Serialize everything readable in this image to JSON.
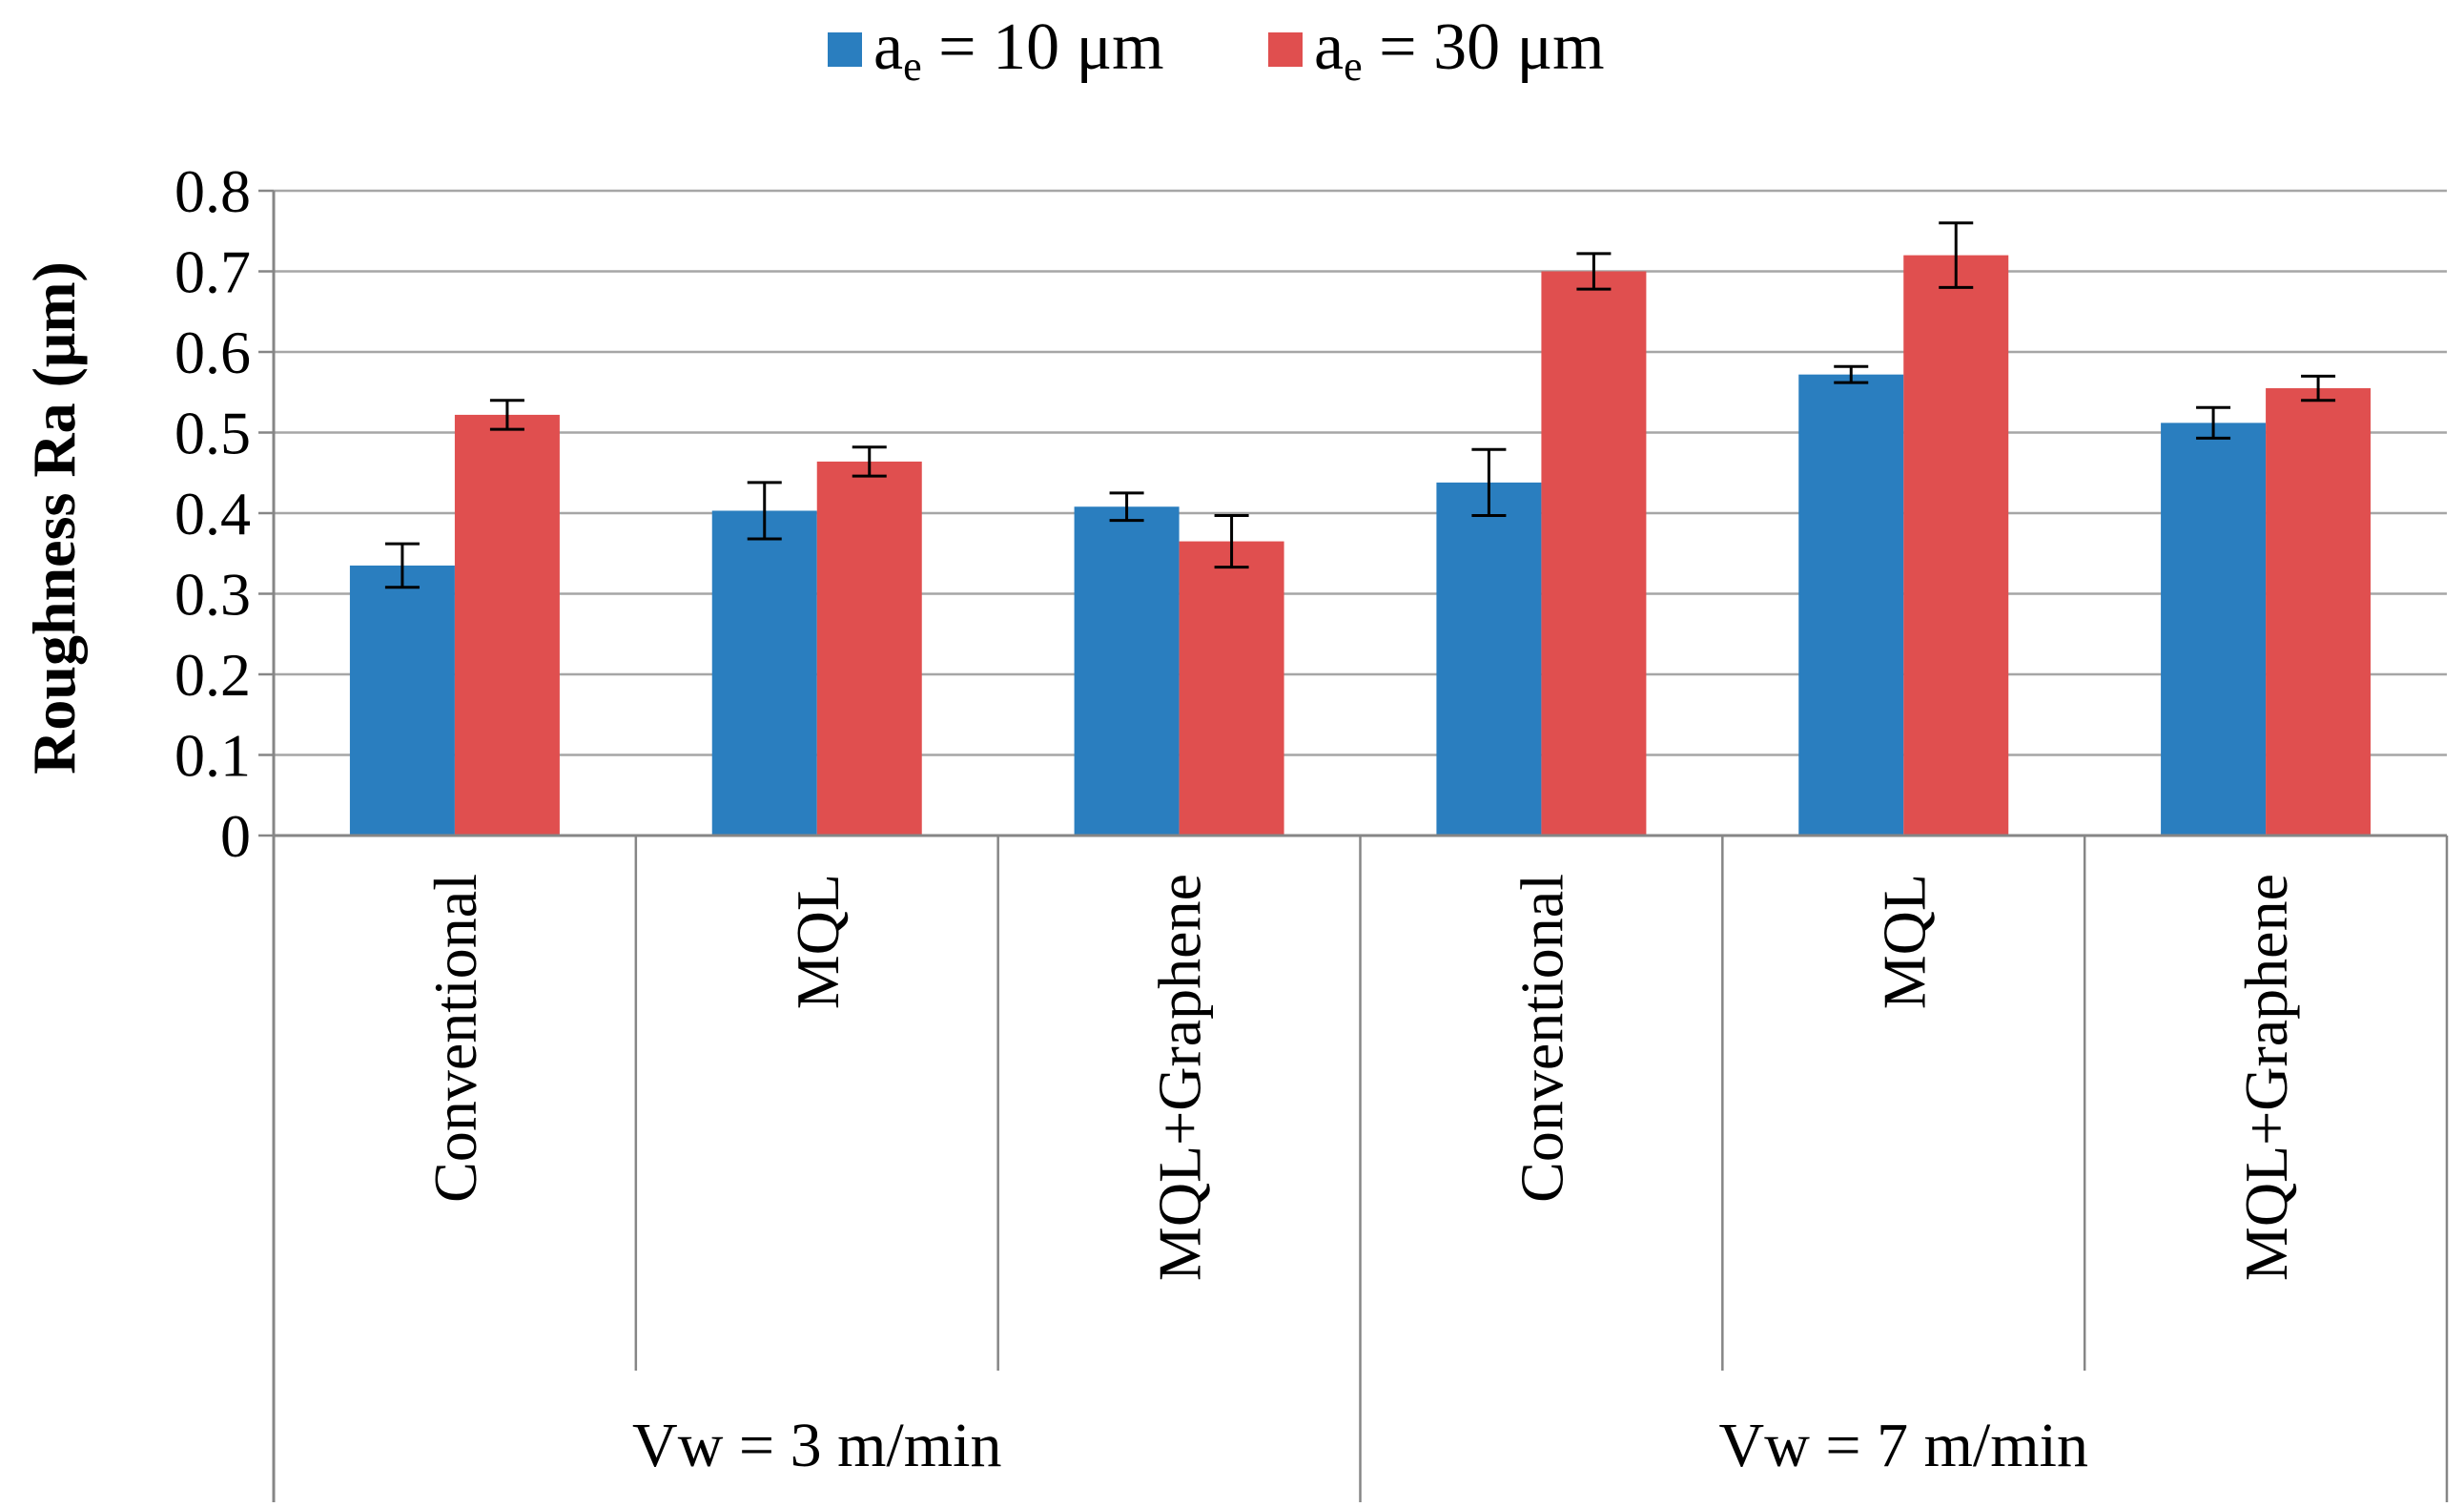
{
  "chart_data": {
    "type": "bar",
    "title": "",
    "xlabel": "",
    "ylabel": "Roughness Ra (μm)",
    "ylim": [
      0,
      0.8
    ],
    "yticks": [
      0,
      0.1,
      0.2,
      0.3,
      0.4,
      0.5,
      0.6,
      0.7,
      0.8
    ],
    "ytick_labels": [
      "0",
      "0.1",
      "0.2",
      "0.3",
      "0.4",
      "0.5",
      "0.6",
      "0.7",
      "0.8"
    ],
    "grid": "horizontal",
    "legend_position": "top-center",
    "groups": [
      {
        "label": "Vw = 3 m/min",
        "categories": [
          "Conventional",
          "MQL",
          "MQL+Graphene"
        ]
      },
      {
        "label": "Vw = 7 m/min",
        "categories": [
          "Conventional",
          "MQL",
          "MQL+Graphene"
        ]
      }
    ],
    "categories": [
      "Conventional",
      "MQL",
      "MQL+Graphene",
      "Conventional",
      "MQL",
      "MQL+Graphene"
    ],
    "series": [
      {
        "name_main": "a",
        "name_sub": "e",
        "name_rest": " = 10 μm",
        "color": "#2a7ebf",
        "values": [
          0.335,
          0.403,
          0.408,
          0.438,
          0.572,
          0.512
        ],
        "errors": [
          0.027,
          0.035,
          0.017,
          0.041,
          0.01,
          0.019
        ]
      },
      {
        "name_main": "a",
        "name_sub": "e",
        "name_rest": " = 30 μm",
        "color": "#e04f4f",
        "values": [
          0.522,
          0.464,
          0.365,
          0.7,
          0.72,
          0.555
        ],
        "errors": [
          0.018,
          0.018,
          0.032,
          0.022,
          0.04,
          0.015
        ]
      }
    ]
  }
}
